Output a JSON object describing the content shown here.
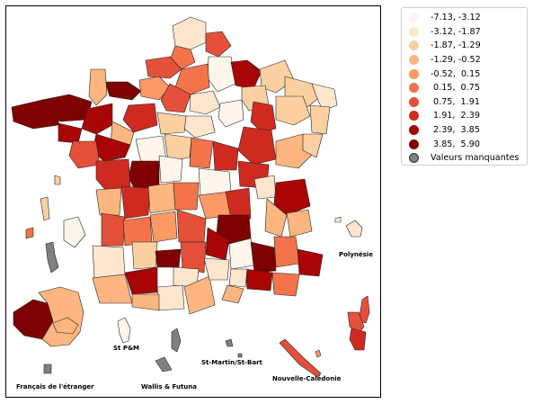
{
  "legend": {
    "items": [
      {
        "label": "-7.13, -3.12",
        "color": "#fff5eb"
      },
      {
        "label": "-3.12, -1.87",
        "color": "#fee6ce"
      },
      {
        "label": "-1.87, -1.29",
        "color": "#fdd0a2"
      },
      {
        "label": "-1.29, -0.52",
        "color": "#fdb67f"
      },
      {
        "label": "-0.52,  0.15",
        "color": "#fc9964"
      },
      {
        "label": " 0.15,  0.75",
        "color": "#f3744a"
      },
      {
        "label": " 0.75,  1.91",
        "color": "#e5503a"
      },
      {
        "label": " 1.91,  2.39",
        "color": "#cf2a20"
      },
      {
        "label": " 2.39,  3.85",
        "color": "#a90505"
      },
      {
        "label": " 3.85,  5.90",
        "color": "#7f0000"
      },
      {
        "label": "Valeurs manquantes",
        "color": "#808080"
      }
    ]
  },
  "labels": {
    "polynesie": "Polynésie",
    "st_pm": "St P&M",
    "st_martin": "St-Martin/St-Bart",
    "nouvelle_caledonie": "Nouvelle-Calédonie",
    "francais_etranger": "Français de l'étranger",
    "wallis": "Wallis & Futuna"
  }
}
